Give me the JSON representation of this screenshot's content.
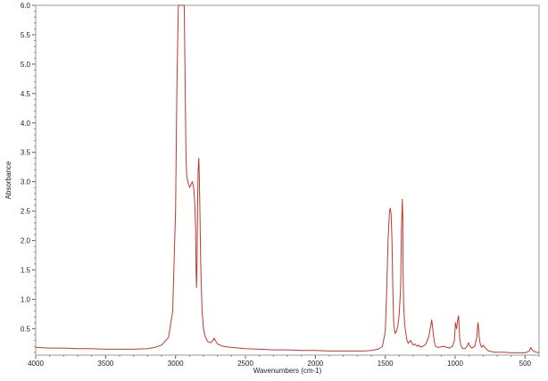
{
  "chart_data": {
    "type": "line",
    "title": "",
    "xlabel": "Wavenumbers (cm-1)",
    "ylabel": "Absorbance",
    "xlim": [
      4000,
      400
    ],
    "ylim": [
      0.05,
      6.0
    ],
    "x_reversed": true,
    "grid": false,
    "x_ticks": [
      4000,
      3500,
      3000,
      2500,
      2000,
      1500,
      1000,
      500
    ],
    "x_tick_labels": [
      "4000",
      "3500",
      "3000",
      "2500",
      "2000",
      "1500",
      "1000",
      "500"
    ],
    "y_ticks": [
      0.5,
      1.0,
      1.5,
      2.0,
      2.5,
      3.0,
      3.5,
      4.0,
      4.5,
      5.0,
      5.5,
      6.0
    ],
    "y_tick_labels": [
      "0.5",
      "1.0",
      "1.5",
      "2.0",
      "2.5",
      "3.0",
      "3.5",
      "4.0",
      "4.5",
      "5.0",
      "5.5",
      "6.0"
    ],
    "series_color": "#c0392b",
    "series": [
      {
        "x": [
          4000,
          3900,
          3800,
          3700,
          3600,
          3500,
          3400,
          3300,
          3200,
          3150,
          3100,
          3050,
          3020,
          3000,
          2990,
          2980,
          2972,
          2966,
          2962,
          2958,
          2950,
          2944,
          2938,
          2930,
          2925,
          2920,
          2912,
          2905,
          2898,
          2890,
          2880,
          2874,
          2868,
          2862,
          2856,
          2853,
          2850,
          2846,
          2842,
          2838,
          2833,
          2830,
          2826,
          2820,
          2810,
          2800,
          2790,
          2770,
          2750,
          2732,
          2724,
          2716,
          2700,
          2680,
          2660,
          2600,
          2500,
          2400,
          2300,
          2200,
          2100,
          2000,
          1900,
          1800,
          1700,
          1650,
          1600,
          1550,
          1520,
          1500,
          1490,
          1480,
          1470,
          1464,
          1458,
          1452,
          1446,
          1440,
          1430,
          1420,
          1410,
          1400,
          1390,
          1384,
          1378,
          1375,
          1372,
          1368,
          1362,
          1355,
          1345,
          1335,
          1320,
          1305,
          1300,
          1290,
          1270,
          1260,
          1250,
          1230,
          1210,
          1190,
          1175,
          1168,
          1160,
          1150,
          1140,
          1120,
          1100,
          1080,
          1060,
          1040,
          1020,
          1005,
          998,
          990,
          982,
          976,
          972,
          968,
          960,
          950,
          930,
          915,
          905,
          895,
          880,
          860,
          845,
          840,
          836,
          832,
          826,
          818,
          810,
          800,
          780,
          760,
          740,
          720,
          700,
          680,
          650,
          600,
          550,
          500,
          470,
          460,
          450,
          440,
          420,
          400
        ],
        "y": [
          0.18,
          0.17,
          0.17,
          0.16,
          0.16,
          0.15,
          0.15,
          0.15,
          0.16,
          0.18,
          0.22,
          0.35,
          0.8,
          2.5,
          4.6,
          6.0,
          6.0,
          6.0,
          6.0,
          6.0,
          6.0,
          6.0,
          6.0,
          4.5,
          3.4,
          3.1,
          3.0,
          2.95,
          2.9,
          2.95,
          3.0,
          2.95,
          2.85,
          2.6,
          2.2,
          1.5,
          1.2,
          1.6,
          2.6,
          3.2,
          3.4,
          3.1,
          2.6,
          1.6,
          0.8,
          0.5,
          0.38,
          0.28,
          0.26,
          0.3,
          0.34,
          0.3,
          0.24,
          0.22,
          0.2,
          0.18,
          0.16,
          0.15,
          0.14,
          0.14,
          0.13,
          0.13,
          0.12,
          0.12,
          0.12,
          0.12,
          0.13,
          0.15,
          0.2,
          0.45,
          1.1,
          2.0,
          2.5,
          2.55,
          2.45,
          2.0,
          1.2,
          0.6,
          0.42,
          0.45,
          0.55,
          0.75,
          1.2,
          2.2,
          2.7,
          2.4,
          1.4,
          0.9,
          0.6,
          0.45,
          0.3,
          0.25,
          0.3,
          0.24,
          0.22,
          0.24,
          0.2,
          0.22,
          0.19,
          0.2,
          0.24,
          0.35,
          0.55,
          0.65,
          0.5,
          0.28,
          0.2,
          0.18,
          0.19,
          0.2,
          0.18,
          0.17,
          0.2,
          0.3,
          0.6,
          0.5,
          0.65,
          0.72,
          0.55,
          0.35,
          0.22,
          0.17,
          0.16,
          0.2,
          0.26,
          0.2,
          0.17,
          0.2,
          0.35,
          0.55,
          0.6,
          0.48,
          0.3,
          0.22,
          0.18,
          0.22,
          0.16,
          0.12,
          0.11,
          0.1,
          0.1,
          0.1,
          0.1,
          0.09,
          0.09,
          0.09,
          0.12,
          0.18,
          0.14,
          0.12,
          0.1,
          0.09
        ]
      }
    ]
  }
}
